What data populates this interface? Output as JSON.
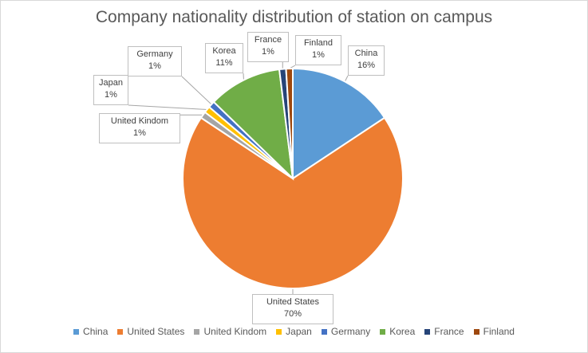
{
  "chart_data": {
    "type": "pie",
    "title": "Company nationality distribution of station on campus",
    "categories": [
      "China",
      "United States",
      "United Kindom",
      "Japan",
      "Germany",
      "Korea",
      "France",
      "Finland"
    ],
    "values": [
      16,
      70,
      1,
      1,
      1,
      11,
      1,
      1
    ],
    "value_labels": [
      "16%",
      "70%",
      "1%",
      "1%",
      "1%",
      "11%",
      "1%",
      "1%"
    ],
    "colors": [
      "#5b9bd5",
      "#ed7d31",
      "#a5a5a5",
      "#ffc000",
      "#4472c4",
      "#70ad47",
      "#264478",
      "#9e480e"
    ],
    "legend_position": "bottom"
  }
}
